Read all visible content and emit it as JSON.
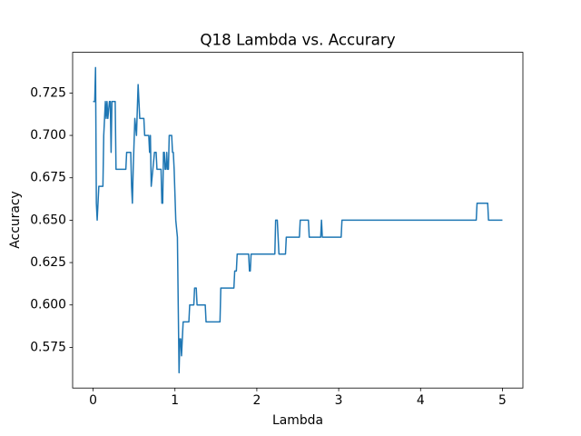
{
  "chart_data": {
    "type": "line",
    "title": "Q18 Lambda vs. Accurary",
    "x_label": "Lambda",
    "y_label": "Accuracy",
    "x": [
      0,
      0.02,
      0.03,
      0.04,
      0.05,
      0.06,
      0.07,
      0.08,
      0.12,
      0.13,
      0.15,
      0.16,
      0.17,
      0.18,
      0.2,
      0.21,
      0.22,
      0.23,
      0.27,
      0.28,
      0.4,
      0.41,
      0.46,
      0.47,
      0.48,
      0.49,
      0.51,
      0.53,
      0.55,
      0.57,
      0.62,
      0.63,
      0.68,
      0.69,
      0.7,
      0.71,
      0.73,
      0.75,
      0.77,
      0.78,
      0.83,
      0.84,
      0.85,
      0.86,
      0.87,
      0.88,
      0.89,
      0.9,
      0.91,
      0.92,
      0.93,
      0.96,
      0.97,
      0.98,
      0.99,
      1.01,
      1.03,
      1.04,
      1.05,
      1.06,
      1.07,
      1.08,
      1.09,
      1.1,
      1.17,
      1.18,
      1.23,
      1.24,
      1.26,
      1.27,
      1.37,
      1.38,
      1.55,
      1.56,
      1.72,
      1.73,
      1.75,
      1.76,
      1.9,
      1.91,
      1.92,
      1.93,
      2.22,
      2.23,
      2.25,
      2.26,
      2.27,
      2.28,
      2.35,
      2.36,
      2.52,
      2.53,
      2.63,
      2.64,
      2.78,
      2.79,
      2.8,
      3.03,
      3.04,
      4.68,
      4.69,
      4.82,
      4.83,
      5
    ],
    "series": [
      {
        "color": "#1f77b4",
        "values": [
          0.72,
          0.72,
          0.74,
          0.66,
          0.65,
          0.66,
          0.67,
          0.67,
          0.67,
          0.7,
          0.72,
          0.71,
          0.72,
          0.71,
          0.72,
          0.72,
          0.69,
          0.72,
          0.72,
          0.68,
          0.68,
          0.69,
          0.69,
          0.67,
          0.66,
          0.68,
          0.71,
          0.7,
          0.73,
          0.71,
          0.71,
          0.7,
          0.7,
          0.69,
          0.7,
          0.67,
          0.68,
          0.69,
          0.69,
          0.68,
          0.68,
          0.66,
          0.66,
          0.69,
          0.69,
          0.68,
          0.68,
          0.69,
          0.68,
          0.68,
          0.7,
          0.7,
          0.69,
          0.69,
          0.68,
          0.65,
          0.64,
          0.6,
          0.56,
          0.58,
          0.58,
          0.57,
          0.58,
          0.59,
          0.59,
          0.6,
          0.6,
          0.61,
          0.61,
          0.6,
          0.6,
          0.59,
          0.59,
          0.61,
          0.61,
          0.62,
          0.62,
          0.63,
          0.63,
          0.62,
          0.62,
          0.63,
          0.63,
          0.65,
          0.65,
          0.64,
          0.63,
          0.63,
          0.63,
          0.64,
          0.64,
          0.65,
          0.65,
          0.64,
          0.64,
          0.65,
          0.64,
          0.64,
          0.65,
          0.65,
          0.66,
          0.66,
          0.65,
          0.65
        ]
      }
    ],
    "xlim": [
      -0.25,
      5.25
    ],
    "xticks": [
      0,
      1,
      2,
      3,
      4,
      5
    ],
    "ylim": [
      0.551,
      0.749
    ],
    "yticks": [
      0.575,
      {
        "value": 0.6,
        "label": "0.600"
      },
      0.625,
      {
        "value": 0.65,
        "label": "0.650"
      },
      0.675,
      {
        "value": 0.7,
        "label": "0.700"
      },
      0.725
    ],
    "grid": false
  }
}
